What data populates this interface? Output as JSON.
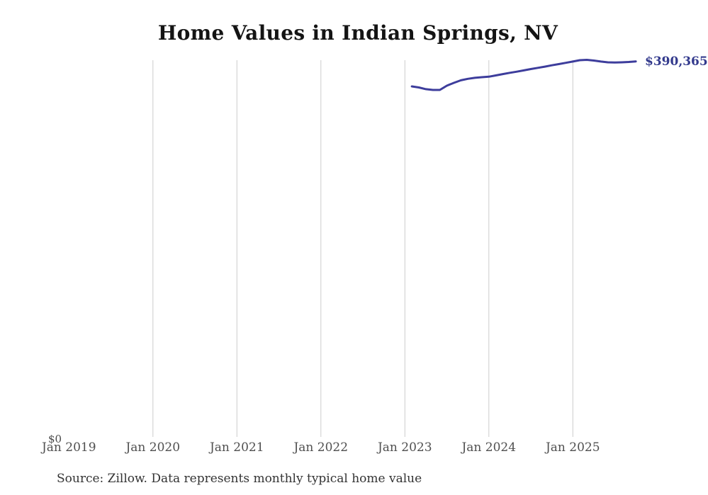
{
  "title": "Home Values in Indian Springs, NV",
  "y_axis": {
    "zero_label": "$0"
  },
  "x_axis": {
    "tick_labels": [
      "Jan 2019",
      "Jan 2020",
      "Jan 2021",
      "Jan 2022",
      "Jan 2023",
      "Jan 2024",
      "Jan 2025"
    ]
  },
  "end_label": "$390,365",
  "source_note": "Source: Zillow. Data represents monthly typical home value",
  "colors": {
    "line": "#3d3d9c",
    "end_label": "#333a8d",
    "grid": "#cccccc",
    "axis_text": "#505050",
    "title_text": "#141414",
    "source_text": "#333333",
    "background": "#ffffff"
  },
  "chart_data": {
    "type": "line",
    "title": "Home Values in Indian Springs, NV",
    "series_name": "Monthly typical home value",
    "x": [
      "2023-02",
      "2023-03",
      "2023-04",
      "2023-05",
      "2023-06",
      "2023-07",
      "2023-08",
      "2023-09",
      "2023-10",
      "2023-11",
      "2023-12",
      "2024-01",
      "2024-02",
      "2024-03",
      "2024-04",
      "2024-05",
      "2024-06",
      "2024-07",
      "2024-08",
      "2024-09",
      "2024-10",
      "2024-11",
      "2024-12",
      "2025-01",
      "2025-02",
      "2025-03",
      "2025-04",
      "2025-05",
      "2025-06",
      "2025-07",
      "2025-08",
      "2025-09",
      "2025-10"
    ],
    "values": [
      364400,
      363300,
      361500,
      360700,
      360700,
      365100,
      368100,
      370700,
      372300,
      373300,
      374000,
      374500,
      375800,
      377200,
      378500,
      379700,
      381000,
      382400,
      383700,
      384900,
      386300,
      387600,
      388900,
      390200,
      391600,
      392000,
      391300,
      390200,
      389400,
      389200,
      389400,
      389800,
      390365
    ],
    "end_value": 390365,
    "xlabel": "",
    "ylabel": "",
    "ylim": [
      0,
      392000
    ],
    "x_tick_labels": [
      "Jan 2019",
      "Jan 2020",
      "Jan 2021",
      "Jan 2022",
      "Jan 2023",
      "Jan 2024",
      "Jan 2025"
    ],
    "gridline_years": [
      2020,
      2021,
      2022,
      2023,
      2024,
      2025
    ],
    "grid": "vertical yearly gridlines only, no horizontal axis line",
    "legend": "none"
  }
}
